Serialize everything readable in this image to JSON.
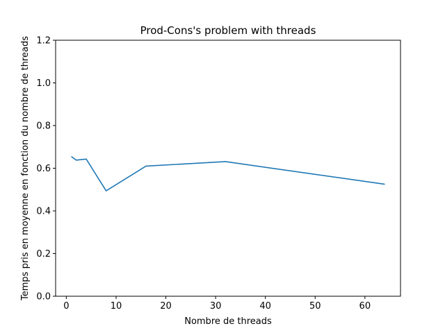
{
  "chart_data": {
    "type": "line",
    "title": "Prod-Cons's problem with threads",
    "xlabel": "Nombre de threads",
    "ylabel": "Temps pris en moyenne en fonction du nombre de threads",
    "xlim": [
      -2.15,
      67.15
    ],
    "ylim": [
      0.0,
      1.2
    ],
    "xticks": [
      0,
      10,
      20,
      30,
      40,
      50,
      60
    ],
    "yticks": [
      0.0,
      0.2,
      0.4,
      0.6,
      0.8,
      1.0,
      1.2
    ],
    "xtick_labels": [
      "0",
      "10",
      "20",
      "30",
      "40",
      "50",
      "60"
    ],
    "ytick_labels": [
      "0.0",
      "0.2",
      "0.4",
      "0.6",
      "0.8",
      "1.0",
      "1.2"
    ],
    "grid": false,
    "series": [
      {
        "color": "#1f77b4",
        "x": [
          1,
          2,
          4,
          8,
          16,
          32,
          64
        ],
        "y": [
          0.655,
          0.638,
          0.643,
          0.494,
          0.61,
          0.631,
          0.525
        ]
      }
    ]
  }
}
